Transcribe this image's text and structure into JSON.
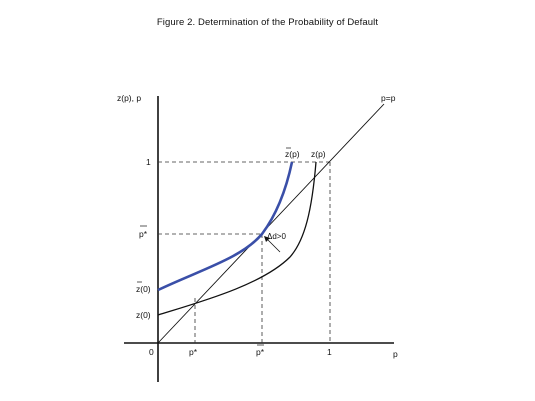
{
  "figure": {
    "title": "Figure 2. Determination of the Probability of Default"
  },
  "axes": {
    "y_label": "z(p), p",
    "x_label": "p",
    "origin_label": "0"
  },
  "y_ticks": {
    "one": "1",
    "p_star_bar": "p*",
    "z_bar_zero": "z(0)",
    "z_zero": "z(0)"
  },
  "x_ticks": {
    "p_star": "p*",
    "p_star_bar": "p*",
    "one": "1"
  },
  "curves": {
    "diagonal_label": "p=p",
    "z_bar_label": "z(p)",
    "z_label": "z(p)",
    "delta_label": "Δd>0"
  },
  "colors": {
    "blue_curve": "#3a4fa8",
    "black_curve": "#111111",
    "axis": "#111111"
  }
}
